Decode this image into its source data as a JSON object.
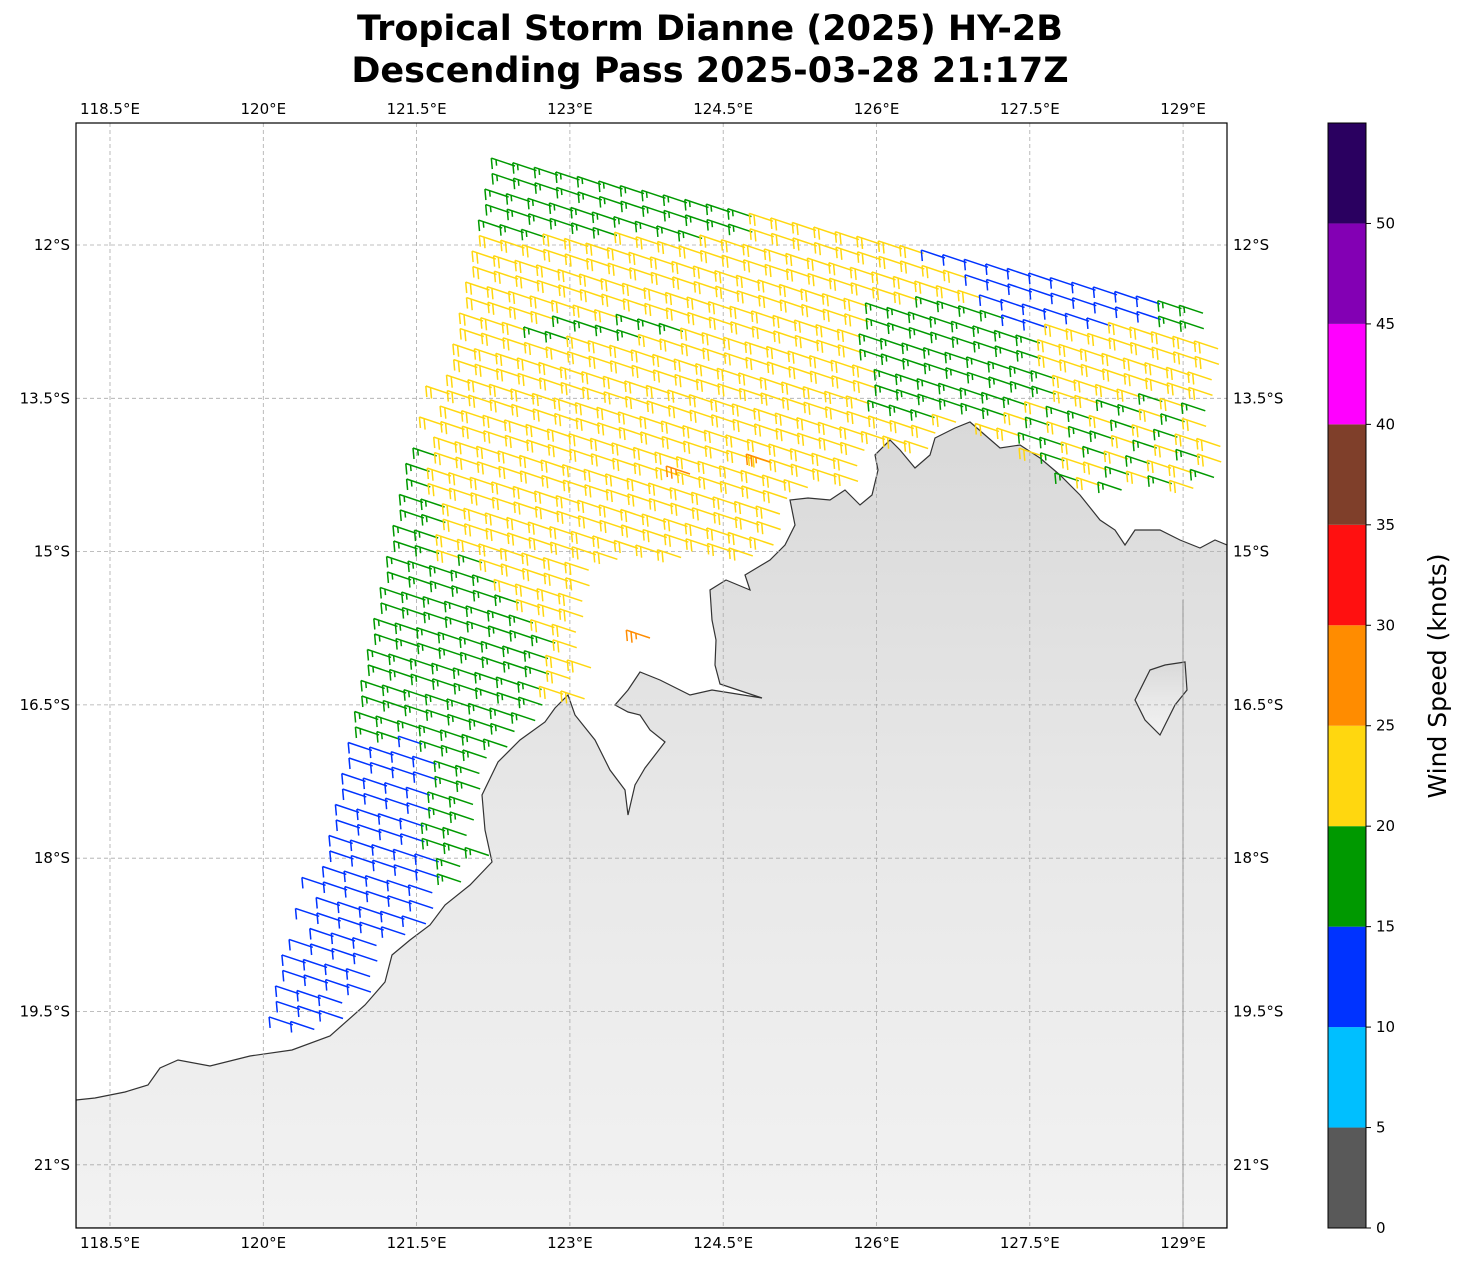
{
  "title": {
    "line1": "Tropical Storm Dianne (2025) HY-2B",
    "line2": "Descending Pass 2025-03-28 21:17Z"
  },
  "map": {
    "lon_ticks": [
      118.5,
      120,
      121.5,
      123,
      124.5,
      126,
      127.5,
      129
    ],
    "lon_labels": [
      "118.5°E",
      "120°E",
      "121.5°E",
      "123°E",
      "124.5°E",
      "126°E",
      "127.5°E",
      "129°E"
    ],
    "lat_ticks": [
      -12,
      -13.5,
      -15,
      -16.5,
      -18,
      -19.5,
      -21
    ],
    "lat_labels": [
      "12°S",
      "13.5°S",
      "15°S",
      "16.5°S",
      "18°S",
      "19.5°S",
      "21°S"
    ],
    "lon_range": [
      118.17,
      129.43
    ],
    "lat_range": [
      -10.8,
      -21.6
    ],
    "ocean_color": "#ffffff",
    "land_color": "#e6e6e6",
    "coast_color": "#333333",
    "grid": true
  },
  "colorbar": {
    "label": "Wind Speed (knots)",
    "range": [
      0,
      55
    ],
    "ticks": [
      0,
      5,
      10,
      15,
      20,
      25,
      30,
      35,
      40,
      45,
      50
    ],
    "tick_labels": [
      "0",
      "5",
      "10",
      "15",
      "20",
      "25",
      "30",
      "35",
      "40",
      "45",
      "50"
    ],
    "colors": [
      "#595959",
      "#00bfff",
      "#0033ff",
      "#009900",
      "#ffd70f",
      "#ff8c00",
      "#ff1010",
      "#7f3f2a",
      "#ff00ff",
      "#8300b4",
      "#2a0060"
    ]
  }
}
